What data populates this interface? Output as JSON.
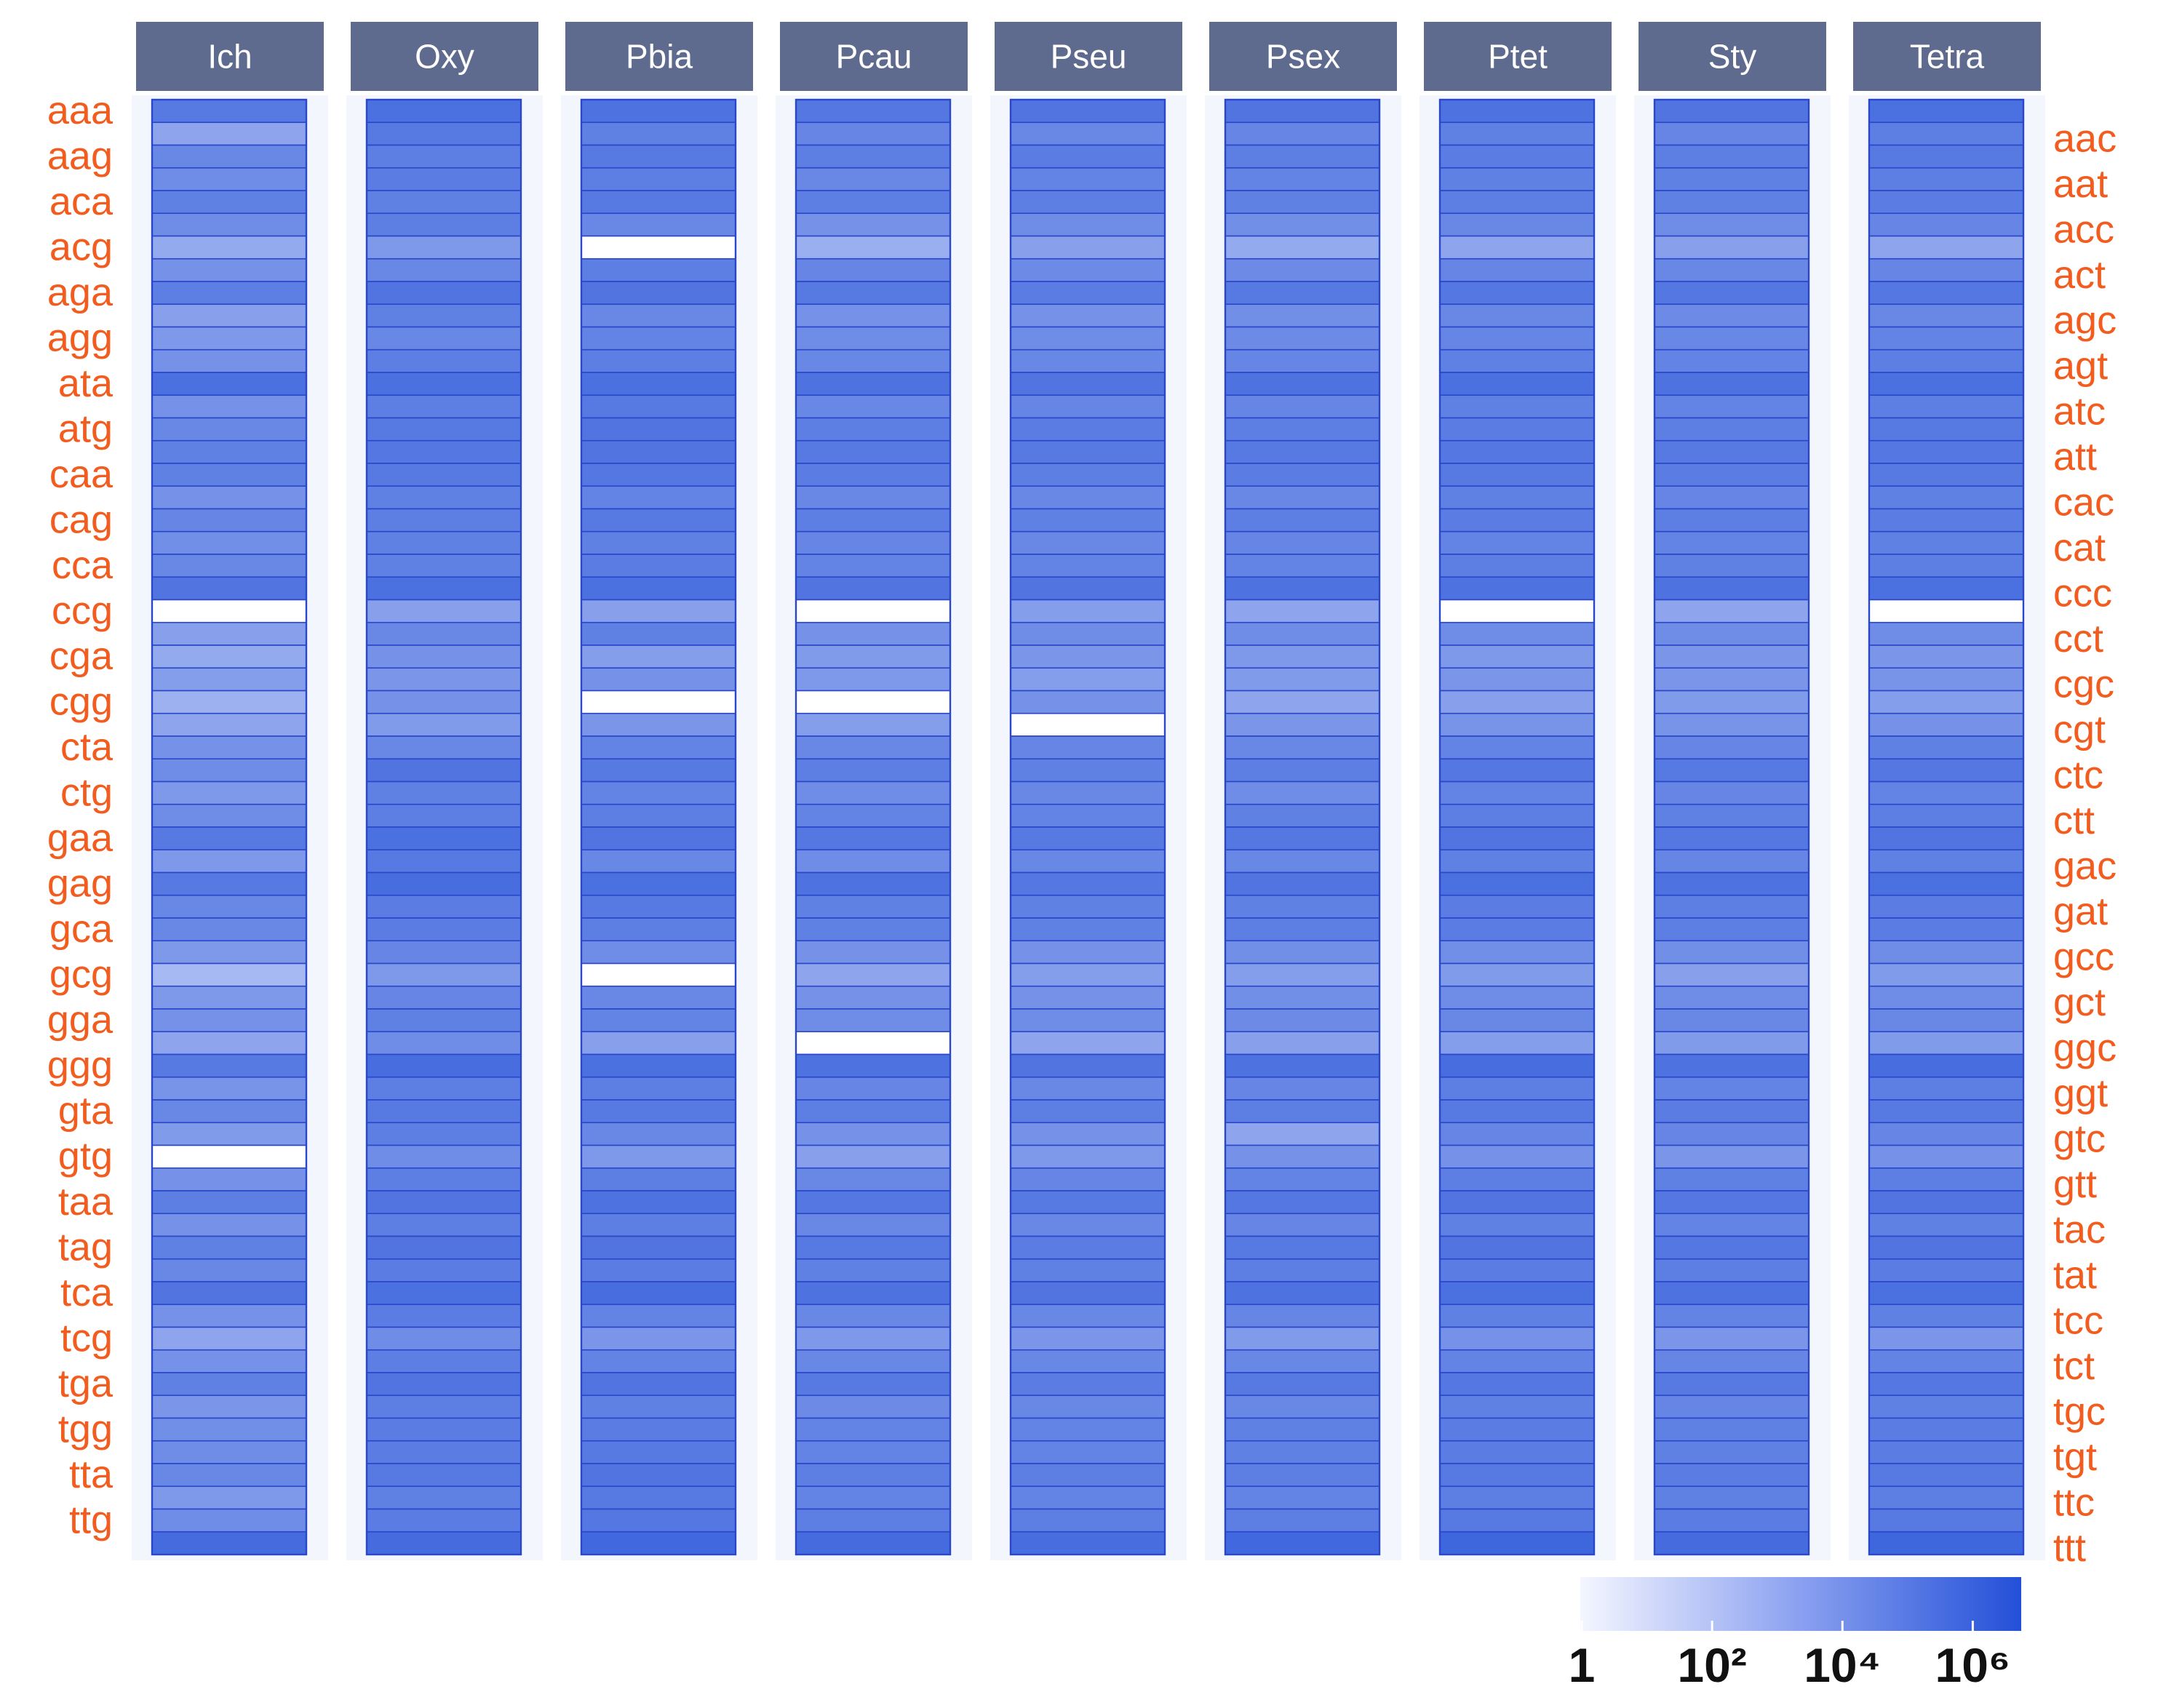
{
  "chart_data": {
    "type": "heatmap",
    "title": "",
    "columns": [
      "Ich",
      "Oxy",
      "Pbia",
      "Pcau",
      "Pseu",
      "Psex",
      "Ptet",
      "Sty",
      "Tetra"
    ],
    "rows": [
      "aaa",
      "aac",
      "aag",
      "aat",
      "aca",
      "acc",
      "acg",
      "act",
      "aga",
      "agc",
      "agg",
      "agt",
      "ata",
      "atc",
      "atg",
      "att",
      "caa",
      "cac",
      "cag",
      "cat",
      "cca",
      "ccc",
      "ccg",
      "cct",
      "cga",
      "cgc",
      "cgg",
      "cgt",
      "cta",
      "ctc",
      "ctg",
      "ctt",
      "gaa",
      "gac",
      "gag",
      "gat",
      "gca",
      "gcc",
      "gcg",
      "gct",
      "gga",
      "ggc",
      "ggg",
      "ggt",
      "gta",
      "gtc",
      "gtg",
      "gtt",
      "taa",
      "tac",
      "tag",
      "tat",
      "tca",
      "tcc",
      "tcg",
      "tct",
      "tga",
      "tgc",
      "tgg",
      "tgt",
      "tta",
      "ttc",
      "ttg",
      "ttt"
    ],
    "left_labels": [
      "aaa",
      "aag",
      "aca",
      "acg",
      "aga",
      "agg",
      "ata",
      "atg",
      "caa",
      "cag",
      "cca",
      "ccg",
      "cga",
      "cgg",
      "cta",
      "ctg",
      "gaa",
      "gag",
      "gca",
      "gcg",
      "gga",
      "ggg",
      "gta",
      "gtg",
      "taa",
      "tag",
      "tca",
      "tcg",
      "tga",
      "tgg",
      "tta",
      "ttg"
    ],
    "right_labels": [
      "aac",
      "aat",
      "acc",
      "act",
      "agc",
      "agt",
      "atc",
      "att",
      "cac",
      "cat",
      "ccc",
      "cct",
      "cgc",
      "cgt",
      "ctc",
      "ctt",
      "gac",
      "gat",
      "gcc",
      "gct",
      "ggc",
      "ggt",
      "gtc",
      "gtt",
      "tac",
      "tat",
      "tcc",
      "tct",
      "tgc",
      "tgt",
      "ttc",
      "ttt"
    ],
    "value_scale": "log10(count)",
    "values_log10": {
      "Ich": [
        4.8,
        3.0,
        4.2,
        4.0,
        4.5,
        4.0,
        2.8,
        3.8,
        4.6,
        3.2,
        3.5,
        3.8,
        5.2,
        3.8,
        4.2,
        4.5,
        4.5,
        3.8,
        4.3,
        3.9,
        4.2,
        5.0,
        0,
        3.2,
        2.8,
        3.3,
        2.5,
        3.0,
        3.8,
        4.0,
        3.5,
        4.0,
        4.8,
        3.5,
        4.8,
        4.2,
        4.2,
        3.5,
        2.2,
        3.5,
        3.8,
        3.0,
        4.8,
        3.7,
        4.2,
        3.4,
        0,
        3.8,
        4.6,
        3.8,
        4.5,
        4.2,
        5.0,
        3.8,
        3.0,
        3.8,
        4.5,
        3.6,
        3.9,
        4.0,
        4.2,
        3.5,
        4.0,
        5.4
      ],
      "Oxy": [
        5.2,
        4.8,
        4.6,
        4.7,
        4.5,
        4.6,
        3.5,
        4.2,
        5.0,
        4.5,
        4.2,
        4.6,
        5.2,
        4.6,
        4.8,
        4.9,
        4.8,
        4.5,
        4.6,
        4.5,
        4.5,
        5.2,
        3.2,
        4.2,
        3.8,
        3.6,
        3.8,
        3.4,
        4.2,
        5.0,
        4.5,
        4.6,
        5.2,
        4.8,
        5.3,
        4.7,
        4.7,
        4.3,
        3.5,
        4.3,
        4.5,
        4.0,
        5.3,
        4.6,
        4.8,
        4.6,
        4.0,
        4.6,
        5.0,
        4.6,
        5.0,
        4.7,
        5.2,
        4.7,
        4.0,
        4.6,
        5.0,
        4.6,
        4.7,
        4.7,
        4.8,
        4.5,
        4.7,
        5.4
      ],
      "Pbia": [
        5.1,
        4.5,
        4.8,
        4.6,
        4.8,
        4.2,
        0,
        4.6,
        5.0,
        4.2,
        4.4,
        4.6,
        5.2,
        4.8,
        5.0,
        5.0,
        4.9,
        4.4,
        4.8,
        4.5,
        4.7,
        5.2,
        3.2,
        4.5,
        3.3,
        3.8,
        0,
        3.6,
        4.4,
        4.8,
        4.4,
        4.6,
        5.0,
        4.2,
        5.2,
        4.8,
        4.6,
        4.0,
        0,
        4.2,
        4.4,
        3.2,
        5.2,
        4.6,
        4.8,
        4.2,
        3.5,
        4.6,
        5.1,
        4.6,
        5.0,
        4.7,
        5.3,
        4.4,
        3.6,
        4.4,
        5.0,
        4.5,
        4.7,
        4.8,
        5.0,
        4.8,
        4.9,
        5.5
      ],
      "Pcau": [
        4.9,
        4.3,
        4.6,
        4.2,
        4.6,
        3.8,
        2.6,
        4.3,
        4.8,
        3.8,
        4.0,
        4.2,
        5.1,
        4.2,
        4.6,
        4.8,
        4.7,
        4.2,
        4.6,
        4.3,
        4.4,
        5.0,
        0,
        3.8,
        3.4,
        3.5,
        0,
        3.3,
        4.2,
        4.6,
        4.0,
        4.4,
        4.9,
        4.0,
        5.1,
        4.5,
        4.5,
        3.8,
        3.0,
        3.8,
        4.0,
        0,
        5.1,
        4.3,
        4.6,
        3.8,
        3.2,
        4.2,
        4.9,
        4.2,
        4.8,
        4.5,
        5.1,
        4.2,
        3.5,
        4.2,
        4.8,
        4.1,
        4.4,
        4.4,
        4.6,
        4.4,
        4.6,
        5.4
      ],
      "Pseu": [
        5.0,
        4.2,
        4.7,
        4.4,
        4.6,
        4.0,
        3.2,
        4.1,
        4.7,
        3.8,
        4.0,
        4.2,
        5.0,
        4.3,
        4.7,
        4.8,
        4.6,
        4.2,
        4.5,
        4.2,
        4.4,
        5.0,
        3.3,
        4.0,
        3.6,
        3.3,
        3.8,
        0,
        4.3,
        4.5,
        4.2,
        4.4,
        4.8,
        4.2,
        4.9,
        4.5,
        4.5,
        3.8,
        3.3,
        3.8,
        4.0,
        3.0,
        5.0,
        4.2,
        4.6,
        3.8,
        3.5,
        4.3,
        4.8,
        4.2,
        4.7,
        4.5,
        5.0,
        4.2,
        3.6,
        4.2,
        4.7,
        4.2,
        4.4,
        4.4,
        4.6,
        4.4,
        4.6,
        5.3
      ],
      "Psex": [
        5.0,
        4.3,
        4.6,
        4.4,
        4.5,
        3.9,
        2.8,
        4.1,
        4.8,
        3.9,
        4.1,
        4.3,
        5.1,
        4.3,
        4.6,
        4.8,
        4.7,
        4.2,
        4.6,
        4.3,
        4.4,
        5.1,
        3.0,
        4.0,
        3.5,
        3.4,
        3.0,
        3.6,
        4.2,
        4.6,
        4.0,
        4.5,
        4.9,
        4.2,
        5.0,
        4.5,
        4.6,
        3.9,
        3.3,
        3.9,
        4.1,
        3.2,
        5.1,
        4.3,
        4.6,
        3.0,
        3.8,
        4.4,
        4.9,
        4.3,
        4.8,
        4.6,
        5.1,
        4.3,
        3.4,
        4.2,
        4.8,
        4.2,
        4.5,
        4.5,
        4.6,
        4.4,
        4.6,
        5.5
      ],
      "Ptet": [
        5.1,
        4.5,
        4.7,
        4.5,
        4.6,
        4.2,
        3.0,
        4.3,
        4.9,
        4.2,
        4.3,
        4.5,
        5.2,
        4.5,
        4.7,
        4.9,
        4.8,
        4.5,
        4.7,
        4.4,
        4.6,
        5.1,
        0,
        4.0,
        3.5,
        3.6,
        3.2,
        3.7,
        4.4,
        4.9,
        4.4,
        4.6,
        5.0,
        4.5,
        5.2,
        4.7,
        4.7,
        3.9,
        3.4,
        4.0,
        4.2,
        3.3,
        5.3,
        4.6,
        4.8,
        4.3,
        3.8,
        4.6,
        5.0,
        4.5,
        5.0,
        4.7,
        5.2,
        4.5,
        3.8,
        4.4,
        4.9,
        4.5,
        4.7,
        4.7,
        4.8,
        4.6,
        4.8,
        5.6
      ],
      "Sty": [
        5.0,
        4.3,
        4.6,
        4.5,
        4.5,
        4.0,
        3.2,
        4.2,
        4.9,
        4.1,
        4.2,
        4.4,
        5.1,
        4.4,
        4.6,
        4.8,
        4.7,
        4.3,
        4.6,
        4.4,
        4.5,
        5.1,
        3.0,
        4.0,
        3.6,
        3.6,
        3.4,
        3.7,
        4.3,
        4.8,
        4.3,
        4.5,
        4.9,
        4.3,
        5.1,
        4.6,
        4.6,
        3.9,
        3.2,
        4.0,
        4.2,
        3.4,
        5.1,
        4.4,
        4.7,
        4.3,
        3.6,
        4.5,
        4.9,
        4.4,
        4.9,
        4.6,
        5.1,
        4.4,
        3.6,
        4.3,
        4.8,
        4.3,
        4.5,
        4.5,
        4.7,
        4.5,
        4.7,
        5.4
      ],
      "Tetra": [
        5.2,
        4.6,
        4.8,
        4.6,
        4.7,
        4.3,
        3.0,
        4.3,
        4.9,
        4.2,
        4.4,
        4.6,
        5.2,
        4.6,
        4.8,
        4.9,
        4.8,
        4.5,
        4.7,
        4.5,
        4.6,
        5.2,
        0,
        4.0,
        3.6,
        3.7,
        3.3,
        3.8,
        4.5,
        4.9,
        4.4,
        4.6,
        5.0,
        4.5,
        5.2,
        4.7,
        4.7,
        4.0,
        3.4,
        4.0,
        4.2,
        3.4,
        5.3,
        4.6,
        4.8,
        4.3,
        3.8,
        4.6,
        5.0,
        4.5,
        5.0,
        4.7,
        5.2,
        4.5,
        3.6,
        4.4,
        4.9,
        4.5,
        4.7,
        4.7,
        4.8,
        4.6,
        4.8,
        5.6
      ]
    },
    "colorbar": {
      "labels": [
        "1",
        "10²",
        "10⁴",
        "10⁶"
      ],
      "label_values_log10": [
        0,
        2,
        4,
        6
      ],
      "range_log10": [
        0,
        6.5
      ],
      "color_low": "#ffffff",
      "color_high": "#2350d8"
    },
    "colors": {
      "header_bg": "#5e6a8e",
      "header_text": "#ffffff",
      "codon_label": "#f25c1e",
      "cell_border": "#2a46c9",
      "colorbar_text": "#111111"
    }
  }
}
